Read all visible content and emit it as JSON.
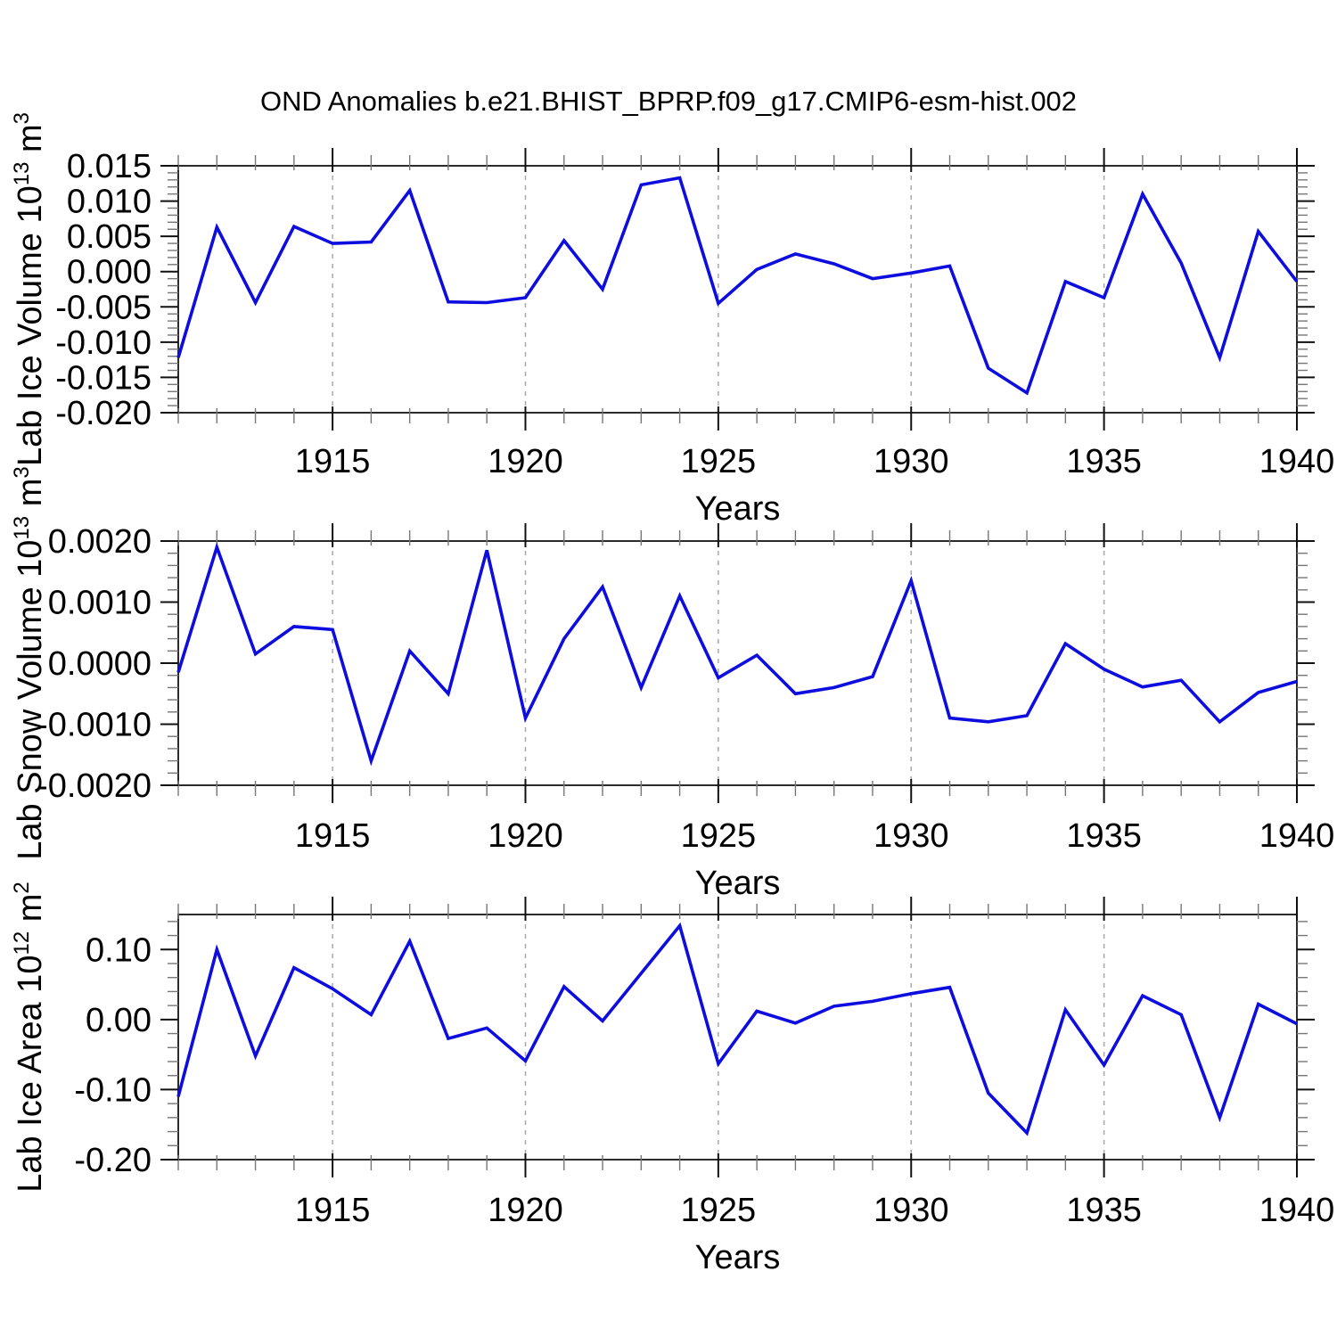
{
  "title": "OND Anomalies b.e21.BHIST_BPRP.f09_g17.CMIP6-esm-hist.002",
  "colors": {
    "line": "#0d0ddf",
    "grid": "#a8a8a8",
    "frame": "#2b2b2b",
    "major_tick": "#111111",
    "minor_tick": "#777777",
    "text": "#000000"
  },
  "x_axis": {
    "label": "Years",
    "range": [
      1911,
      1940
    ],
    "major_ticks": [
      1915,
      1920,
      1925,
      1930,
      1935,
      1940
    ],
    "major_tick_labels": [
      "1915",
      "1920",
      "1925",
      "1930",
      "1935",
      "1940"
    ],
    "gridlines": [
      1915,
      1920,
      1925,
      1930,
      1935
    ]
  },
  "years": [
    1911,
    1912,
    1913,
    1914,
    1915,
    1916,
    1917,
    1918,
    1919,
    1920,
    1921,
    1922,
    1923,
    1924,
    1925,
    1926,
    1927,
    1928,
    1929,
    1930,
    1931,
    1932,
    1933,
    1934,
    1935,
    1936,
    1937,
    1938,
    1939,
    1940
  ],
  "chart_data": [
    {
      "type": "line",
      "name": "lab-ice-volume",
      "ylabel_parts": [
        "Lab Ice Volume 10",
        "13",
        " m",
        "3"
      ],
      "xlabel": "Years",
      "ylim": [
        -0.02,
        0.015
      ],
      "ytick_values": [
        0.015,
        0.01,
        0.005,
        0.0,
        -0.005,
        -0.01,
        -0.015,
        -0.02
      ],
      "ytick_labels": [
        "0.015",
        "0.010",
        "0.005",
        "0.000",
        "-0.005",
        "-0.010",
        "-0.015",
        "-0.020"
      ],
      "ymajor_step": 0.005,
      "yminor_step": 0.001,
      "values": [
        -0.0122,
        0.0063,
        -0.0044,
        0.0064,
        0.004,
        0.0042,
        0.0115,
        -0.0043,
        -0.0044,
        -0.0037,
        0.0044,
        -0.0025,
        0.0123,
        0.0133,
        -0.0045,
        0.0003,
        0.0025,
        0.0011,
        -0.001,
        -0.0002,
        0.0008,
        -0.0137,
        -0.0172,
        -0.0014,
        -0.0037,
        0.011,
        0.0012,
        -0.0122,
        0.0057,
        -0.0014
      ]
    },
    {
      "type": "line",
      "name": "lab-snow-volume",
      "ylabel_parts": [
        "Lab Snow Volume 10",
        "13",
        " m",
        "3"
      ],
      "xlabel": "Years",
      "ylim": [
        -0.002,
        0.002
      ],
      "ytick_values": [
        0.002,
        0.001,
        0.0,
        -0.001,
        -0.002
      ],
      "ytick_labels": [
        "0.0020",
        "0.0010",
        "0.0000",
        "-0.0010",
        "-0.0020"
      ],
      "ymajor_step": 0.001,
      "yminor_step": 0.0002,
      "values": [
        -0.00015,
        0.0019,
        0.00015,
        0.0006,
        0.00055,
        -0.0016,
        0.0002,
        -0.0005,
        0.00185,
        -0.0009,
        0.0004,
        0.00125,
        -0.0004,
        0.0011,
        -0.00024,
        0.00013,
        -0.0005,
        -0.0004,
        -0.00022,
        0.00135,
        -0.0009,
        -0.00096,
        -0.00086,
        0.00032,
        -0.0001,
        -0.00039,
        -0.00028,
        -0.00096,
        -0.00048,
        -0.0003
      ]
    },
    {
      "type": "line",
      "name": "lab-ice-area",
      "ylabel_parts": [
        "Lab Ice Area 10",
        "12",
        " m",
        "2"
      ],
      "xlabel": "Years",
      "ylim": [
        -0.2,
        0.15
      ],
      "ytick_values": [
        0.1,
        0.0,
        -0.1,
        -0.2
      ],
      "ytick_labels": [
        "0.10",
        "0.00",
        "-0.10",
        "-0.20"
      ],
      "ymajor_step": 0.1,
      "yminor_step": 0.02,
      "values": [
        -0.11,
        0.1,
        -0.052,
        0.074,
        0.044,
        0.007,
        0.112,
        -0.027,
        -0.012,
        -0.059,
        0.047,
        -0.002,
        0.066,
        0.134,
        -0.063,
        0.012,
        -0.005,
        0.019,
        0.026,
        0.037,
        0.046,
        -0.105,
        -0.162,
        0.014,
        -0.065,
        0.034,
        0.007,
        -0.14,
        0.022,
        -0.006
      ]
    }
  ]
}
